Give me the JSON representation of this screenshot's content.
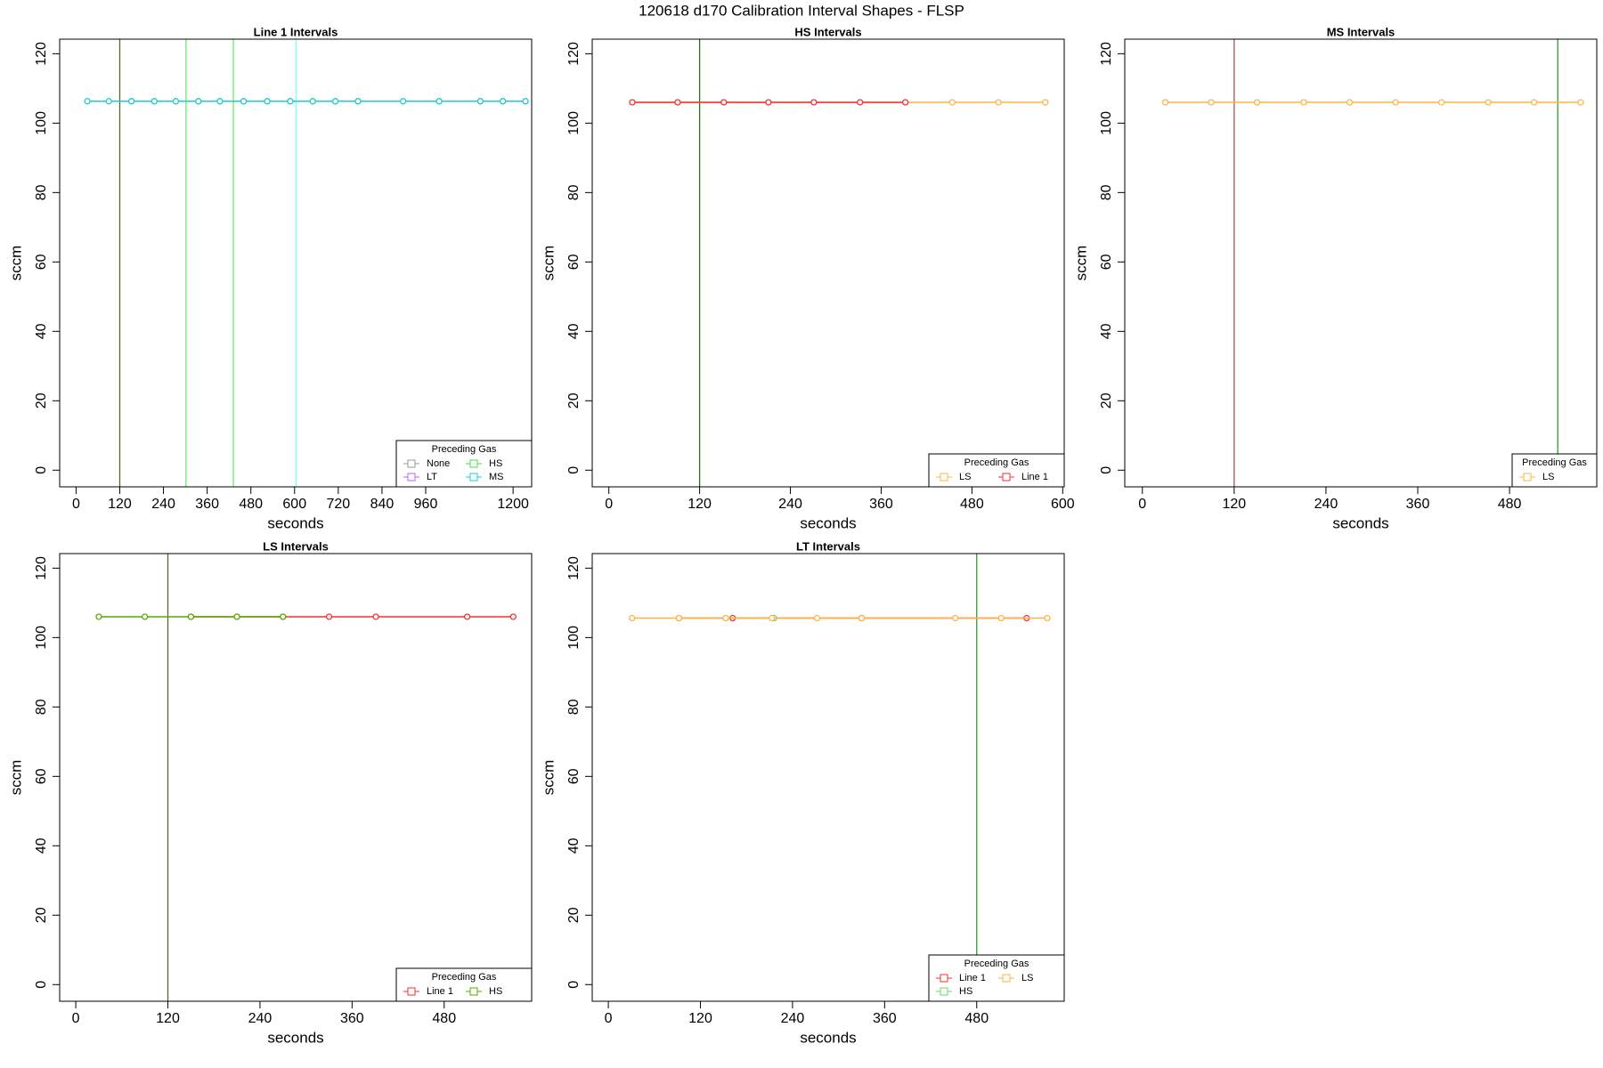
{
  "title": "120618   d170   Calibration Interval Shapes - FLSP",
  "chart_data": [
    {
      "type": "line",
      "title": "Line 1 Intervals",
      "xlabel": "seconds",
      "ylabel": "sccm",
      "xlim": [
        -45,
        1251
      ],
      "ylim": [
        -4.8,
        124.2
      ],
      "xticks": [
        0,
        120,
        240,
        360,
        480,
        600,
        720,
        840,
        960,
        1200
      ],
      "yticks": [
        0,
        20,
        40,
        60,
        80,
        100,
        120
      ],
      "vlines": [
        {
          "x": 120,
          "color": "#556b2f"
        },
        {
          "x": 302,
          "color": "#66ee66"
        },
        {
          "x": 432,
          "color": "#66ee66"
        },
        {
          "x": 604,
          "color": "#88ffff"
        }
      ],
      "legend_title": "Preceding Gas",
      "legend_corner": "bottomright",
      "legend_ncol": 2,
      "series": [
        {
          "name": "None",
          "color": "#999999",
          "x": [
            152,
            336,
            588
          ],
          "values": [
            106.3,
            106.3,
            106.3
          ]
        },
        {
          "name": "LT",
          "color": "#b266ff",
          "x": [
            274,
            460,
            712,
            1110,
            1234
          ],
          "values": [
            106.3,
            106.3,
            106.3,
            106.3,
            106.3
          ]
        },
        {
          "name": "HS",
          "color": "#44dd44",
          "x": [
            215,
            395,
            525,
            650,
            774,
            997,
            1172
          ],
          "values": [
            106.3,
            106.3,
            106.3,
            106.3,
            106.3,
            106.3,
            106.3
          ]
        },
        {
          "name": "MS",
          "color": "#22cccc",
          "x": [
            31,
            90,
            152,
            215,
            274,
            336,
            395,
            460,
            525,
            588,
            650,
            712,
            774,
            898,
            997,
            1110,
            1172,
            1234
          ],
          "values": [
            106.3,
            106.3,
            106.3,
            106.3,
            106.3,
            106.3,
            106.3,
            106.3,
            106.3,
            106.3,
            106.3,
            106.3,
            106.3,
            106.3,
            106.3,
            106.3,
            106.3,
            106.3
          ]
        }
      ]
    },
    {
      "type": "line",
      "title": "HS Intervals",
      "xlabel": "seconds",
      "ylabel": "sccm",
      "xlim": [
        -22,
        602
      ],
      "ylim": [
        -4.8,
        124.2
      ],
      "xticks": [
        0,
        120,
        240,
        360,
        480,
        600
      ],
      "yticks": [
        0,
        20,
        40,
        60,
        80,
        100,
        120
      ],
      "vlines": [
        {
          "x": 120,
          "color": "#2e6b1f"
        }
      ],
      "legend_title": "Preceding Gas",
      "legend_corner": "bottomright",
      "legend_ncol": 2,
      "series": [
        {
          "name": "LS",
          "color": "#ffb347",
          "x": [
            31,
            91,
            152,
            211,
            271,
            332,
            392,
            454,
            515,
            577
          ],
          "values": [
            106,
            106,
            106,
            106,
            106,
            106,
            106,
            106,
            106,
            106
          ]
        },
        {
          "name": "Line 1",
          "color": "#ee3333",
          "x": [
            31,
            91,
            152,
            211,
            271,
            332,
            392
          ],
          "values": [
            106,
            106,
            106,
            106,
            106,
            106,
            106
          ]
        }
      ]
    },
    {
      "type": "line",
      "title": "MS Intervals",
      "xlabel": "seconds",
      "ylabel": "sccm",
      "xlim": [
        -23,
        594
      ],
      "ylim": [
        -4.8,
        124.2
      ],
      "xticks": [
        0,
        120,
        240,
        360,
        480
      ],
      "yticks": [
        0,
        20,
        40,
        60,
        80,
        100,
        120
      ],
      "vlines": [
        {
          "x": 120,
          "color": "#b0504a"
        },
        {
          "x": 543,
          "color": "#339933"
        }
      ],
      "legend_title": "Preceding Gas",
      "legend_corner": "bottomright",
      "legend_ncol": 1,
      "series": [
        {
          "name": "LS",
          "color": "#ffb347",
          "x": [
            30,
            90,
            150,
            211,
            271,
            331,
            391,
            452,
            512,
            573
          ],
          "values": [
            106,
            106,
            106,
            106,
            106,
            106,
            106,
            106,
            106,
            106
          ]
        }
      ]
    },
    {
      "type": "line",
      "title": "LS Intervals",
      "xlabel": "seconds",
      "ylabel": "sccm",
      "xlim": [
        -21,
        594
      ],
      "ylim": [
        -4.8,
        124.2
      ],
      "xticks": [
        0,
        120,
        240,
        360,
        480
      ],
      "yticks": [
        0,
        20,
        40,
        60,
        80,
        100,
        120
      ],
      "vlines": [
        {
          "x": 120,
          "color": "#556b2f"
        }
      ],
      "legend_title": "Preceding Gas",
      "legend_corner": "bottomright",
      "legend_ncol": 2,
      "series": [
        {
          "name": "Line 1",
          "color": "#ee3333",
          "x": [
            150,
            210,
            270,
            330,
            391,
            510,
            570
          ],
          "values": [
            106,
            106,
            106,
            106,
            106,
            106,
            106
          ]
        },
        {
          "name": "HS",
          "color": "#55aa00",
          "x": [
            30,
            90,
            150,
            210,
            270
          ],
          "values": [
            106,
            106,
            106,
            106,
            106
          ]
        }
      ]
    },
    {
      "type": "line",
      "title": "LT Intervals",
      "xlabel": "seconds",
      "ylabel": "sccm",
      "xlim": [
        -21,
        594
      ],
      "ylim": [
        -4.8,
        124.2
      ],
      "xticks": [
        0,
        120,
        240,
        360,
        480
      ],
      "yticks": [
        0,
        20,
        40,
        60,
        80,
        100,
        120
      ],
      "vlines": [
        {
          "x": 480,
          "color": "#339933"
        }
      ],
      "legend_title": "Preceding Gas",
      "legend_corner": "bottomright",
      "legend_ncol": 2,
      "series": [
        {
          "name": "Line 1",
          "color": "#ee3333",
          "x": [
            92,
            162,
            330,
            545
          ],
          "values": [
            105.6,
            105.6,
            105.6,
            105.6
          ]
        },
        {
          "name": "HS",
          "color": "#66dd66",
          "x": [
            92,
            153,
            216
          ],
          "values": [
            105.6,
            105.6,
            105.6
          ]
        },
        {
          "name": "LS",
          "color": "#ffb347",
          "x": [
            31,
            92,
            153,
            213,
            272,
            330,
            452,
            512,
            572
          ],
          "values": [
            105.6,
            105.6,
            105.6,
            105.6,
            105.6,
            105.6,
            105.6,
            105.6,
            105.6
          ]
        }
      ]
    }
  ]
}
